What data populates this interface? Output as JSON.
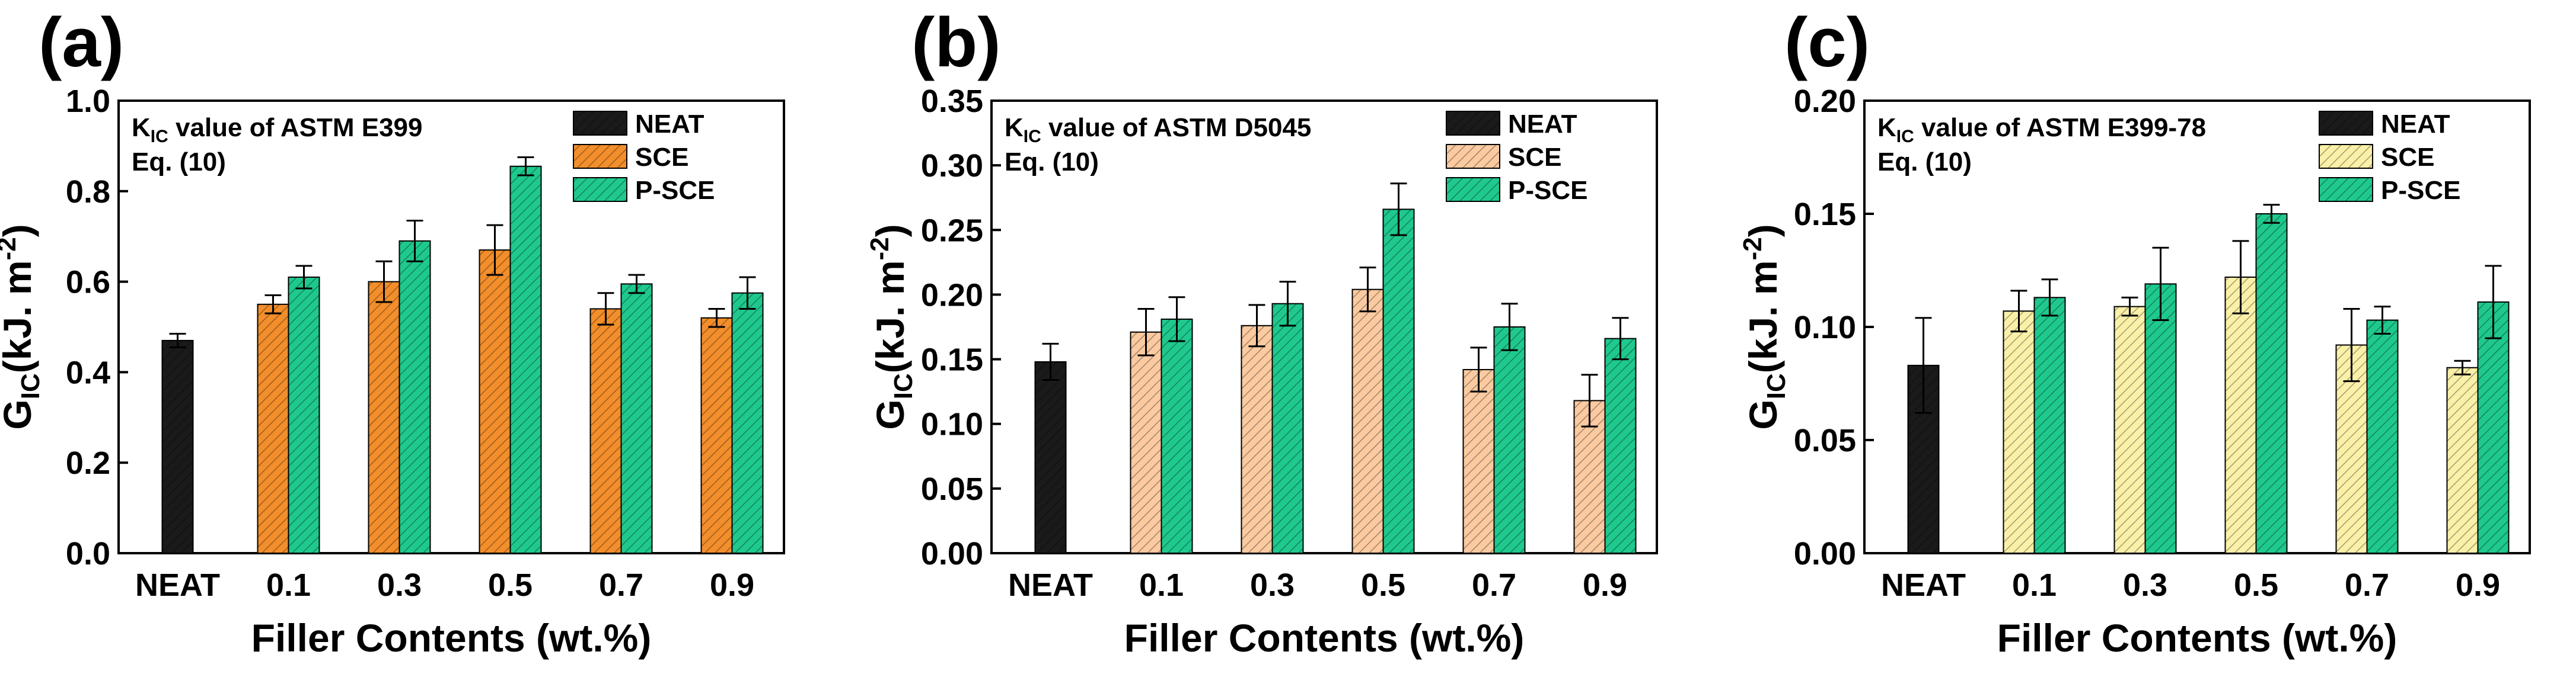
{
  "chart_data": [
    {
      "type": "bar",
      "panel_label": "(a)",
      "annotation": {
        "k": "K",
        "sub": "IC",
        "rest": " value of ASTM E399",
        "line2": "Eq. (10)"
      },
      "ylabel": {
        "main": "G",
        "sub": "IC",
        "unit": "(kJ. m",
        "sup": "-2",
        "close": ")"
      },
      "xlabel": "Filler Contents (wt.%)",
      "ylim": [
        0.0,
        1.0
      ],
      "yticks": [
        "0.0",
        "0.2",
        "0.4",
        "0.6",
        "0.8",
        "1.0"
      ],
      "categories": [
        "NEAT",
        "0.1",
        "0.3",
        "0.5",
        "0.7",
        "0.9"
      ],
      "grid": false,
      "legend_position": "top-right",
      "series": [
        {
          "name": "NEAT",
          "color": "#1a1a1a",
          "values": [
            0.47,
            null,
            null,
            null,
            null,
            null
          ],
          "errors": [
            0.015,
            null,
            null,
            null,
            null,
            null
          ]
        },
        {
          "name": "SCE",
          "color": "#f28e2b",
          "values": [
            null,
            0.55,
            0.6,
            0.67,
            0.54,
            0.52
          ],
          "errors": [
            null,
            0.02,
            0.045,
            0.055,
            0.035,
            0.02
          ]
        },
        {
          "name": "P-SCE",
          "color": "#1fc98e",
          "values": [
            null,
            0.61,
            0.69,
            0.855,
            0.595,
            0.575
          ],
          "errors": [
            null,
            0.025,
            0.045,
            0.02,
            0.02,
            0.035
          ]
        }
      ]
    },
    {
      "type": "bar",
      "panel_label": "(b)",
      "annotation": {
        "k": "K",
        "sub": "IC",
        "rest": " value of ASTM D5045",
        "line2": "Eq. (10)"
      },
      "ylabel": {
        "main": "G",
        "sub": "IC",
        "unit": "(kJ. m",
        "sup": "-2",
        "close": ")"
      },
      "xlabel": "Filler Contents (wt.%)",
      "ylim": [
        0.0,
        0.35
      ],
      "yticks": [
        "0.00",
        "0.05",
        "0.10",
        "0.15",
        "0.20",
        "0.25",
        "0.30",
        "0.35"
      ],
      "categories": [
        "NEAT",
        "0.1",
        "0.3",
        "0.5",
        "0.7",
        "0.9"
      ],
      "grid": false,
      "legend_position": "top-right",
      "series": [
        {
          "name": "NEAT",
          "color": "#1a1a1a",
          "values": [
            0.148,
            null,
            null,
            null,
            null,
            null
          ],
          "errors": [
            0.014,
            null,
            null,
            null,
            null,
            null
          ]
        },
        {
          "name": "SCE",
          "color": "#fbcaa0",
          "values": [
            null,
            0.171,
            0.176,
            0.204,
            0.142,
            0.118
          ],
          "errors": [
            null,
            0.018,
            0.016,
            0.017,
            0.017,
            0.02
          ]
        },
        {
          "name": "P-SCE",
          "color": "#1fc98e",
          "values": [
            null,
            0.181,
            0.193,
            0.266,
            0.175,
            0.166
          ],
          "errors": [
            null,
            0.017,
            0.017,
            0.02,
            0.018,
            0.016
          ]
        }
      ]
    },
    {
      "type": "bar",
      "panel_label": "(c)",
      "annotation": {
        "k": "K",
        "sub": "IC",
        "rest": " value of ASTM E399-78",
        "line2": "Eq. (10)"
      },
      "ylabel": {
        "main": "G",
        "sub": "IC",
        "unit": "(kJ. m",
        "sup": "-2",
        "close": ")"
      },
      "xlabel": "Filler Contents (wt.%)",
      "ylim": [
        0.0,
        0.2
      ],
      "yticks": [
        "0.00",
        "0.05",
        "0.10",
        "0.15",
        "0.20"
      ],
      "categories": [
        "NEAT",
        "0.1",
        "0.3",
        "0.5",
        "0.7",
        "0.9"
      ],
      "grid": false,
      "legend_position": "top-right",
      "series": [
        {
          "name": "NEAT",
          "color": "#1a1a1a",
          "values": [
            0.083,
            null,
            null,
            null,
            null,
            null
          ],
          "errors": [
            0.021,
            null,
            null,
            null,
            null,
            null
          ]
        },
        {
          "name": "SCE",
          "color": "#faf0a8",
          "values": [
            null,
            0.107,
            0.109,
            0.122,
            0.092,
            0.082
          ],
          "errors": [
            null,
            0.009,
            0.004,
            0.016,
            0.016,
            0.003
          ]
        },
        {
          "name": "P-SCE",
          "color": "#1fc98e",
          "values": [
            null,
            0.113,
            0.119,
            0.15,
            0.103,
            0.111
          ],
          "errors": [
            null,
            0.008,
            0.016,
            0.004,
            0.006,
            0.016
          ]
        }
      ]
    }
  ]
}
